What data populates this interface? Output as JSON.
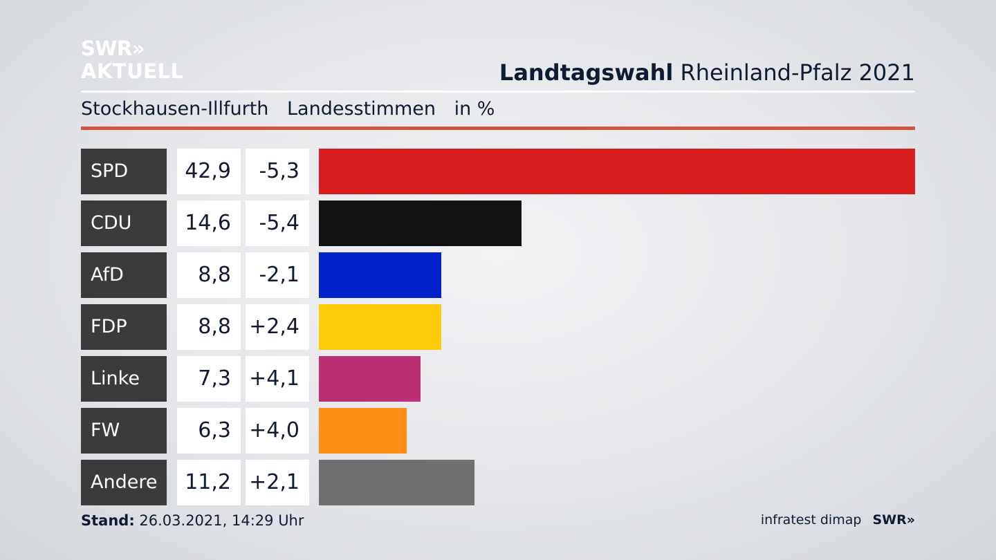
{
  "brand": {
    "line1": "SWR»",
    "line2": "AKTUELL"
  },
  "header": {
    "title_bold": "Landtagswahl",
    "title_rest": "Rheinland-Pfalz 2021",
    "subtitle_place": "Stockhausen-Illfurth",
    "subtitle_type": "Landesstimmen",
    "subtitle_unit": "in %"
  },
  "colors": {
    "accent_rule": "#d4533f",
    "label_bg": "#3b3b3b"
  },
  "chart_data": {
    "type": "bar",
    "orientation": "horizontal",
    "categories": [
      "SPD",
      "CDU",
      "AfD",
      "FDP",
      "Linke",
      "FW",
      "Andere"
    ],
    "values": [
      42.9,
      14.6,
      8.8,
      8.8,
      7.3,
      6.3,
      11.2
    ],
    "value_labels": [
      "42,9",
      "14,6",
      "8,8",
      "8,8",
      "7,3",
      "6,3",
      "11,2"
    ],
    "changes": [
      -5.3,
      -5.4,
      -2.1,
      2.4,
      4.1,
      4.0,
      2.1
    ],
    "change_labels": [
      "-5,3",
      "-5,4",
      "-2,1",
      "+2,4",
      "+4,1",
      "+4,0",
      "+2,1"
    ],
    "colors": [
      "#d71f20",
      "#121212",
      "#0021c9",
      "#fecb08",
      "#bb2f74",
      "#fd8e17",
      "#707071"
    ],
    "xlim": [
      0,
      42.9
    ],
    "title": "Landtagswahl Rheinland-Pfalz 2021",
    "unit": "in %"
  },
  "footer": {
    "stand_label": "Stand:",
    "stand_value": "26.03.2021, 14:29 Uhr",
    "source": "infratest dimap",
    "brand": "SWR»"
  }
}
